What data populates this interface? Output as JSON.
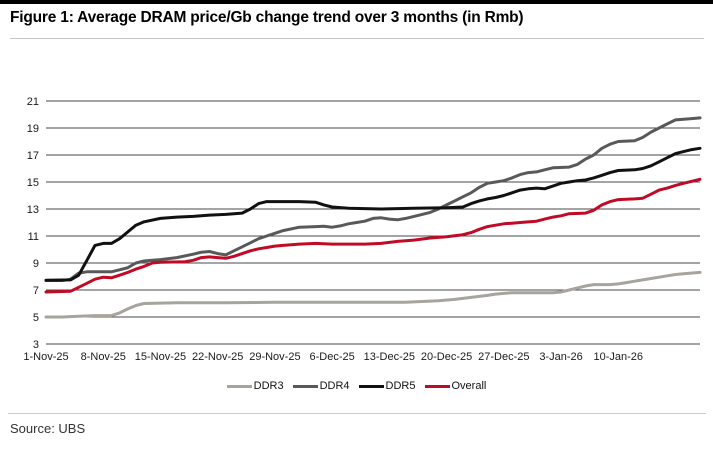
{
  "page": {
    "title": "Figure 1: Average DRAM price/Gb change trend over 3 months (in Rmb)",
    "source": "Source: UBS"
  },
  "chart_data": {
    "type": "line",
    "title": "Average DRAM price/Gb change trend over 3 months (in Rmb)",
    "unit": "Rmb",
    "x_range": [
      0,
      80
    ],
    "x_tick_days": [
      0,
      7,
      14,
      21,
      28,
      35,
      42,
      49,
      56,
      63,
      70
    ],
    "x_tick_labels": [
      "1-Nov-25",
      "8-Nov-25",
      "15-Nov-25",
      "22-Nov-25",
      "29-Nov-25",
      "6-Dec-25",
      "13-Dec-25",
      "20-Dec-25",
      "27-Dec-25",
      "3-Jan-26",
      "10-Jan-26"
    ],
    "ylim": [
      3,
      21
    ],
    "y_ticks": [
      3,
      5,
      7,
      9,
      11,
      13,
      15,
      17,
      19,
      21
    ],
    "grid": "horizontal",
    "gridline_color": "#4a4a4a",
    "tick_label_color": "#1a1a1a",
    "legend_position": "bottom-center",
    "series": [
      {
        "name": "DDR3",
        "color": "#a6a49b",
        "points": [
          [
            0,
            5.0
          ],
          [
            2,
            5.0
          ],
          [
            4,
            5.05
          ],
          [
            6,
            5.1
          ],
          [
            8,
            5.1
          ],
          [
            9,
            5.3
          ],
          [
            10,
            5.6
          ],
          [
            11,
            5.85
          ],
          [
            12,
            6.0
          ],
          [
            16,
            6.05
          ],
          [
            22,
            6.05
          ],
          [
            28,
            6.1
          ],
          [
            36,
            6.1
          ],
          [
            44,
            6.1
          ],
          [
            46,
            6.15
          ],
          [
            48,
            6.2
          ],
          [
            50,
            6.3
          ],
          [
            52,
            6.45
          ],
          [
            54,
            6.6
          ],
          [
            55,
            6.7
          ],
          [
            56,
            6.75
          ],
          [
            57,
            6.8
          ],
          [
            62,
            6.8
          ],
          [
            63,
            6.85
          ],
          [
            64,
            7.0
          ],
          [
            65,
            7.15
          ],
          [
            66,
            7.3
          ],
          [
            67,
            7.4
          ],
          [
            69,
            7.4
          ],
          [
            70,
            7.45
          ],
          [
            71,
            7.55
          ],
          [
            72,
            7.65
          ],
          [
            73,
            7.75
          ],
          [
            74,
            7.85
          ],
          [
            75,
            7.95
          ],
          [
            76,
            8.05
          ],
          [
            77,
            8.15
          ],
          [
            78,
            8.2
          ],
          [
            80,
            8.3
          ]
        ]
      },
      {
        "name": "DDR4",
        "color": "#595959",
        "points": [
          [
            0,
            7.7
          ],
          [
            2,
            7.7
          ],
          [
            3,
            7.8
          ],
          [
            4,
            8.25
          ],
          [
            5,
            8.35
          ],
          [
            8,
            8.35
          ],
          [
            9,
            8.5
          ],
          [
            10,
            8.65
          ],
          [
            11,
            9.0
          ],
          [
            12,
            9.15
          ],
          [
            13,
            9.2
          ],
          [
            14,
            9.25
          ],
          [
            16,
            9.4
          ],
          [
            18,
            9.65
          ],
          [
            19,
            9.8
          ],
          [
            20,
            9.85
          ],
          [
            21,
            9.7
          ],
          [
            22,
            9.6
          ],
          [
            23,
            9.9
          ],
          [
            24,
            10.2
          ],
          [
            25,
            10.5
          ],
          [
            26,
            10.8
          ],
          [
            27,
            11.0
          ],
          [
            28,
            11.2
          ],
          [
            29,
            11.4
          ],
          [
            31,
            11.65
          ],
          [
            33,
            11.7
          ],
          [
            34,
            11.72
          ],
          [
            35,
            11.65
          ],
          [
            36,
            11.75
          ],
          [
            37,
            11.9
          ],
          [
            38,
            12.0
          ],
          [
            39,
            12.1
          ],
          [
            40,
            12.3
          ],
          [
            41,
            12.35
          ],
          [
            42,
            12.25
          ],
          [
            43,
            12.2
          ],
          [
            44,
            12.3
          ],
          [
            45,
            12.45
          ],
          [
            46,
            12.6
          ],
          [
            47,
            12.75
          ],
          [
            48,
            13.0
          ],
          [
            49,
            13.3
          ],
          [
            50,
            13.6
          ],
          [
            51,
            13.9
          ],
          [
            52,
            14.2
          ],
          [
            53,
            14.6
          ],
          [
            54,
            14.9
          ],
          [
            55,
            15.0
          ],
          [
            56,
            15.1
          ],
          [
            57,
            15.3
          ],
          [
            58,
            15.55
          ],
          [
            59,
            15.7
          ],
          [
            60,
            15.75
          ],
          [
            61,
            15.9
          ],
          [
            62,
            16.05
          ],
          [
            64,
            16.1
          ],
          [
            65,
            16.3
          ],
          [
            66,
            16.7
          ],
          [
            67,
            17.0
          ],
          [
            68,
            17.5
          ],
          [
            69,
            17.8
          ],
          [
            70,
            18.0
          ],
          [
            72,
            18.05
          ],
          [
            73,
            18.3
          ],
          [
            74,
            18.7
          ],
          [
            75,
            19.0
          ],
          [
            76,
            19.3
          ],
          [
            77,
            19.6
          ],
          [
            79,
            19.7
          ],
          [
            80,
            19.75
          ]
        ]
      },
      {
        "name": "DDR5",
        "color": "#111111",
        "points": [
          [
            0,
            7.72
          ],
          [
            3,
            7.75
          ],
          [
            4,
            8.1
          ],
          [
            5,
            9.2
          ],
          [
            6,
            10.3
          ],
          [
            7,
            10.45
          ],
          [
            8,
            10.45
          ],
          [
            9,
            10.8
          ],
          [
            10,
            11.3
          ],
          [
            11,
            11.8
          ],
          [
            12,
            12.05
          ],
          [
            14,
            12.3
          ],
          [
            16,
            12.4
          ],
          [
            18,
            12.45
          ],
          [
            20,
            12.55
          ],
          [
            22,
            12.6
          ],
          [
            24,
            12.7
          ],
          [
            25,
            13.0
          ],
          [
            26,
            13.4
          ],
          [
            27,
            13.55
          ],
          [
            31,
            13.55
          ],
          [
            33,
            13.5
          ],
          [
            34,
            13.3
          ],
          [
            35,
            13.15
          ],
          [
            37,
            13.05
          ],
          [
            41,
            13.0
          ],
          [
            45,
            13.05
          ],
          [
            49,
            13.1
          ],
          [
            51,
            13.15
          ],
          [
            52,
            13.4
          ],
          [
            53,
            13.6
          ],
          [
            54,
            13.75
          ],
          [
            55,
            13.85
          ],
          [
            56,
            14.0
          ],
          [
            57,
            14.2
          ],
          [
            58,
            14.4
          ],
          [
            59,
            14.5
          ],
          [
            60,
            14.55
          ],
          [
            61,
            14.5
          ],
          [
            62,
            14.7
          ],
          [
            63,
            14.9
          ],
          [
            64,
            15.0
          ],
          [
            65,
            15.1
          ],
          [
            66,
            15.15
          ],
          [
            67,
            15.3
          ],
          [
            68,
            15.5
          ],
          [
            69,
            15.7
          ],
          [
            70,
            15.85
          ],
          [
            72,
            15.9
          ],
          [
            73,
            16.0
          ],
          [
            74,
            16.2
          ],
          [
            75,
            16.5
          ],
          [
            76,
            16.8
          ],
          [
            77,
            17.1
          ],
          [
            78,
            17.25
          ],
          [
            79,
            17.4
          ],
          [
            80,
            17.5
          ]
        ]
      },
      {
        "name": "Overall",
        "color": "#c00a26",
        "points": [
          [
            0,
            6.85
          ],
          [
            3,
            6.9
          ],
          [
            4,
            7.2
          ],
          [
            5,
            7.5
          ],
          [
            6,
            7.8
          ],
          [
            7,
            7.95
          ],
          [
            8,
            7.9
          ],
          [
            9,
            8.1
          ],
          [
            10,
            8.3
          ],
          [
            11,
            8.55
          ],
          [
            12,
            8.75
          ],
          [
            13,
            9.0
          ],
          [
            14,
            9.05
          ],
          [
            17,
            9.1
          ],
          [
            18,
            9.2
          ],
          [
            19,
            9.4
          ],
          [
            20,
            9.45
          ],
          [
            21,
            9.4
          ],
          [
            22,
            9.35
          ],
          [
            23,
            9.5
          ],
          [
            24,
            9.7
          ],
          [
            25,
            9.9
          ],
          [
            26,
            10.05
          ],
          [
            27,
            10.15
          ],
          [
            28,
            10.25
          ],
          [
            29,
            10.3
          ],
          [
            30,
            10.35
          ],
          [
            31,
            10.4
          ],
          [
            33,
            10.45
          ],
          [
            35,
            10.4
          ],
          [
            39,
            10.4
          ],
          [
            41,
            10.45
          ],
          [
            43,
            10.6
          ],
          [
            45,
            10.7
          ],
          [
            47,
            10.85
          ],
          [
            49,
            10.95
          ],
          [
            51,
            11.1
          ],
          [
            52,
            11.25
          ],
          [
            53,
            11.5
          ],
          [
            54,
            11.7
          ],
          [
            55,
            11.8
          ],
          [
            56,
            11.9
          ],
          [
            57,
            11.95
          ],
          [
            58,
            12.0
          ],
          [
            60,
            12.1
          ],
          [
            61,
            12.25
          ],
          [
            62,
            12.4
          ],
          [
            63,
            12.5
          ],
          [
            64,
            12.65
          ],
          [
            66,
            12.7
          ],
          [
            67,
            12.9
          ],
          [
            68,
            13.3
          ],
          [
            69,
            13.55
          ],
          [
            70,
            13.7
          ],
          [
            72,
            13.75
          ],
          [
            73,
            13.8
          ],
          [
            74,
            14.1
          ],
          [
            75,
            14.4
          ],
          [
            76,
            14.55
          ],
          [
            77,
            14.75
          ],
          [
            78,
            14.9
          ],
          [
            79,
            15.05
          ],
          [
            80,
            15.2
          ]
        ]
      }
    ]
  }
}
